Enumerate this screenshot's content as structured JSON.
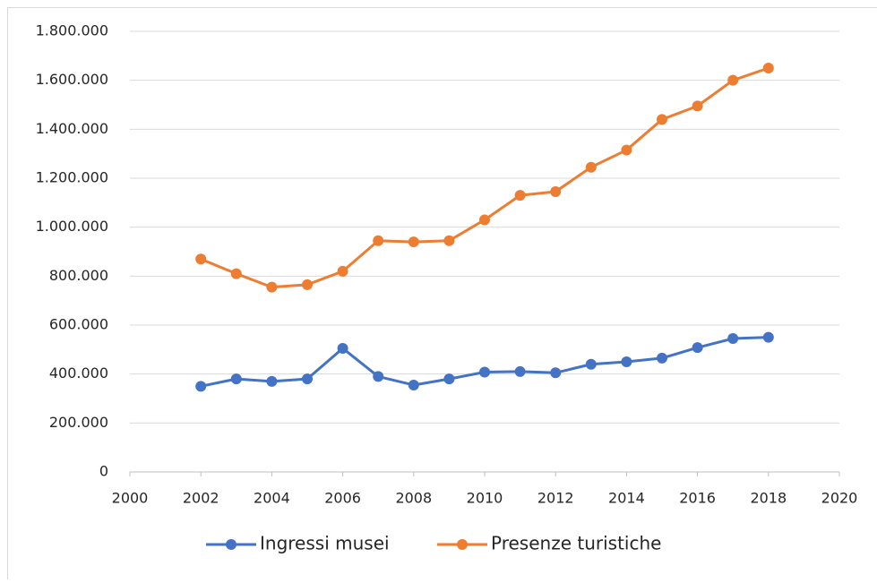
{
  "chart_data": {
    "type": "line",
    "x": [
      2002,
      2003,
      2004,
      2005,
      2006,
      2007,
      2008,
      2009,
      2010,
      2011,
      2012,
      2013,
      2014,
      2015,
      2016,
      2017,
      2018
    ],
    "series": [
      {
        "name": "Ingressi musei",
        "color": "#4472c4",
        "values": [
          350000,
          380000,
          370000,
          380000,
          505000,
          390000,
          355000,
          380000,
          408000,
          410000,
          405000,
          440000,
          450000,
          465000,
          508000,
          545000,
          550000
        ]
      },
      {
        "name": "Presenze turistiche",
        "color": "#ed7d31",
        "values": [
          870000,
          810000,
          755000,
          765000,
          820000,
          945000,
          940000,
          945000,
          1030000,
          1130000,
          1145000,
          1245000,
          1315000,
          1440000,
          1495000,
          1600000,
          1650000
        ]
      }
    ],
    "xlim": [
      2000,
      2020
    ],
    "xticks": [
      2000,
      2002,
      2004,
      2006,
      2008,
      2010,
      2012,
      2014,
      2016,
      2018,
      2020
    ],
    "ylim": [
      0,
      1800000
    ],
    "yticks": [
      0,
      {
        "value": 200000,
        "label": "200.000"
      },
      {
        "value": 400000,
        "label": "400.000"
      },
      {
        "value": 600000,
        "label": "600.000"
      },
      {
        "value": 800000,
        "label": "800.000"
      },
      {
        "value": 1000000,
        "label": "1.000.000"
      },
      {
        "value": 1200000,
        "label": "1.200.000"
      },
      {
        "value": 1400000,
        "label": "1.400.000"
      },
      {
        "value": 1600000,
        "label": "1.600.000"
      },
      {
        "value": 1800000,
        "label": "1.800.000"
      }
    ],
    "grid": true,
    "legend": "bottom"
  }
}
